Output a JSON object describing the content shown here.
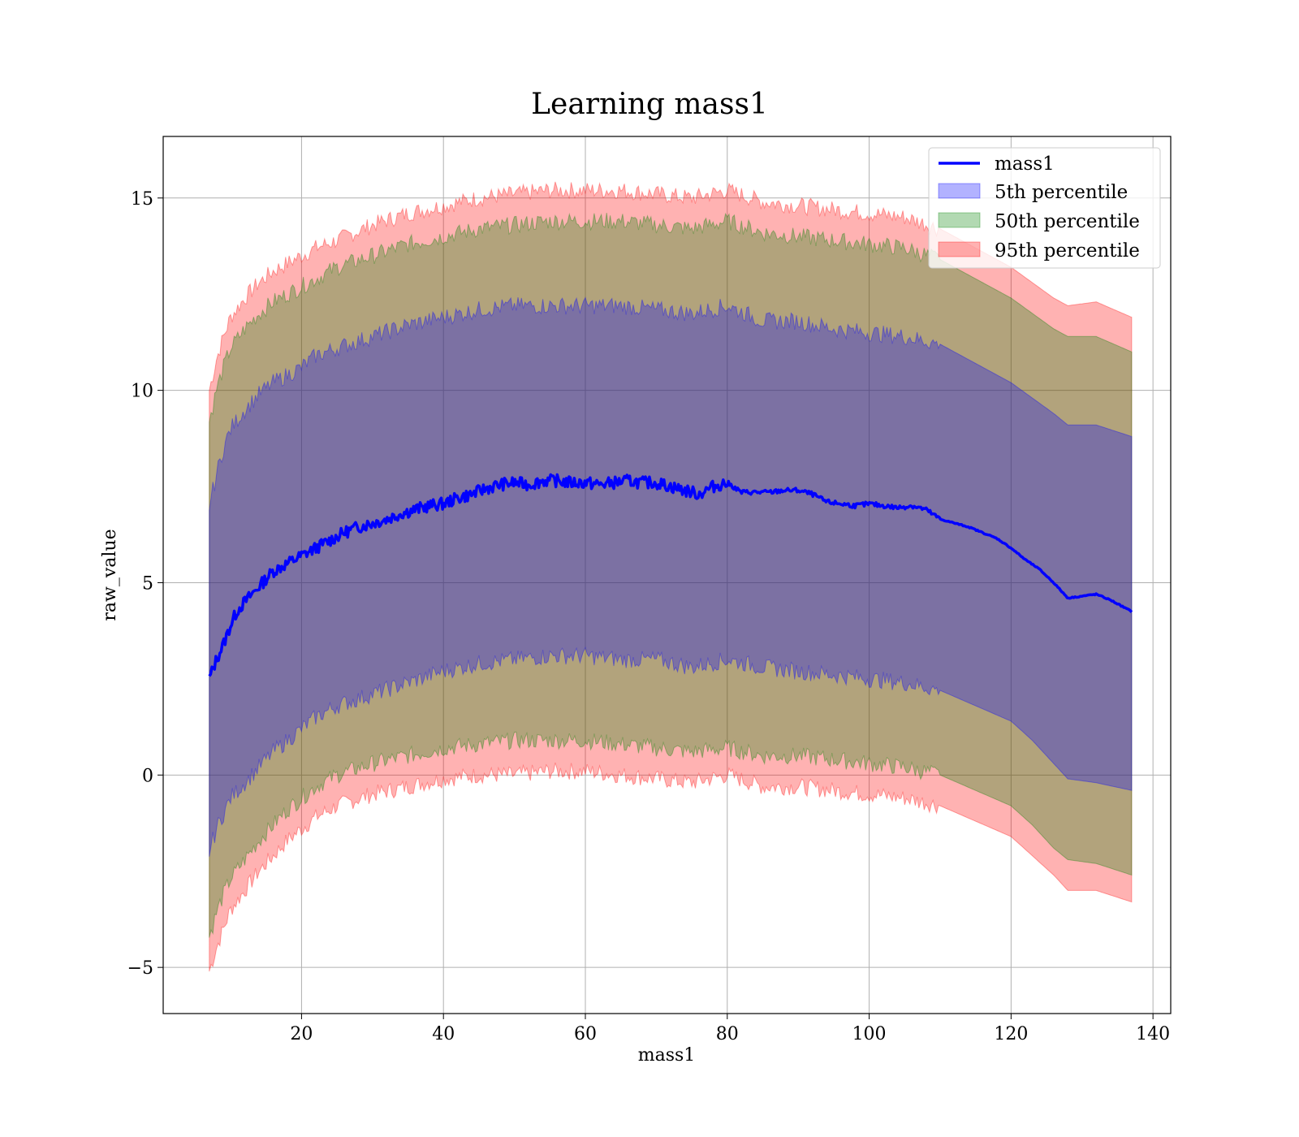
{
  "chart_data": {
    "type": "area",
    "title": "Learning mass1",
    "xlabel": "mass1",
    "ylabel": "raw_value",
    "xlim": [
      0.5,
      142.5
    ],
    "ylim": [
      -6.2,
      16.6
    ],
    "xticks": [
      20,
      40,
      60,
      80,
      100,
      120,
      140
    ],
    "xtick_labels": [
      "20",
      "40",
      "60",
      "80",
      "100",
      "120",
      "140"
    ],
    "yticks": [
      -5,
      0,
      5,
      10,
      15
    ],
    "ytick_labels": [
      "−5",
      "0",
      "5",
      "10",
      "15"
    ],
    "grid": true,
    "legend_position": "top-right",
    "line": {
      "name": "mass1",
      "color": "#0000ff",
      "x": [
        7,
        8,
        9,
        10,
        11,
        12,
        13,
        14,
        15,
        16,
        18,
        20,
        22,
        24,
        26,
        28,
        30,
        32,
        34,
        36,
        38,
        40,
        42,
        44,
        46,
        48,
        50,
        52,
        54,
        56,
        58,
        60,
        62,
        64,
        66,
        68,
        70,
        72,
        74,
        76,
        78,
        80,
        82,
        84,
        86,
        88,
        90,
        92,
        94,
        96,
        98,
        100,
        102,
        104,
        106,
        108,
        110,
        112,
        114,
        116,
        118,
        120,
        122,
        124,
        126,
        128,
        130,
        132,
        134,
        137
      ],
      "y": [
        2.5,
        3.0,
        3.4,
        3.9,
        4.3,
        4.5,
        4.7,
        4.9,
        5.1,
        5.3,
        5.5,
        5.7,
        5.9,
        6.1,
        6.3,
        6.45,
        6.55,
        6.65,
        6.8,
        6.9,
        7.0,
        7.05,
        7.2,
        7.3,
        7.45,
        7.55,
        7.6,
        7.55,
        7.65,
        7.65,
        7.6,
        7.6,
        7.55,
        7.6,
        7.65,
        7.6,
        7.6,
        7.5,
        7.4,
        7.3,
        7.5,
        7.6,
        7.35,
        7.35,
        7.35,
        7.4,
        7.4,
        7.3,
        7.1,
        7.05,
        7.0,
        7.05,
        7.0,
        6.95,
        7.0,
        6.9,
        6.65,
        6.55,
        6.45,
        6.3,
        6.15,
        5.9,
        5.6,
        5.35,
        5.0,
        4.6,
        4.65,
        4.7,
        4.55,
        4.25
      ]
    },
    "bands": [
      {
        "name": "5th percentile",
        "color": "#0000ff",
        "x": [
          7,
          8,
          9,
          10,
          12,
          14,
          16,
          18,
          20,
          22,
          25,
          30,
          35,
          40,
          45,
          50,
          55,
          60,
          65,
          70,
          75,
          80,
          85,
          90,
          95,
          100,
          105,
          110,
          115,
          120,
          123,
          126,
          128,
          132,
          137
        ],
        "upper": [
          7.0,
          7.8,
          8.5,
          9.0,
          9.5,
          9.9,
          10.2,
          10.4,
          10.6,
          10.9,
          11.1,
          11.4,
          11.7,
          11.9,
          12.1,
          12.2,
          12.2,
          12.2,
          12.2,
          12.1,
          12.0,
          12.2,
          11.8,
          11.8,
          11.6,
          11.5,
          11.4,
          11.2,
          10.7,
          10.2,
          9.8,
          9.4,
          9.1,
          9.1,
          8.8
        ],
        "lower": [
          -2.0,
          -1.4,
          -1.0,
          -0.6,
          -0.2,
          0.2,
          0.6,
          0.9,
          1.2,
          1.5,
          1.8,
          2.1,
          2.4,
          2.7,
          2.9,
          3.0,
          3.1,
          3.1,
          3.0,
          3.0,
          2.8,
          3.0,
          2.8,
          2.7,
          2.6,
          2.5,
          2.4,
          2.2,
          1.8,
          1.4,
          0.9,
          0.3,
          -0.1,
          -0.2,
          -0.4
        ]
      },
      {
        "name": "50th percentile",
        "color": "#008000",
        "x": [
          7,
          8,
          9,
          10,
          12,
          14,
          16,
          18,
          20,
          22,
          25,
          30,
          35,
          40,
          45,
          50,
          55,
          60,
          65,
          70,
          75,
          80,
          85,
          90,
          95,
          100,
          105,
          110,
          115,
          120,
          123,
          126,
          128,
          132,
          137
        ],
        "upper": [
          9.2,
          10.0,
          10.6,
          11.1,
          11.6,
          12.0,
          12.3,
          12.5,
          12.7,
          12.9,
          13.2,
          13.5,
          13.8,
          14.0,
          14.2,
          14.3,
          14.4,
          14.4,
          14.4,
          14.3,
          14.2,
          14.4,
          14.1,
          14.0,
          13.9,
          13.8,
          13.7,
          13.4,
          12.9,
          12.4,
          12.0,
          11.6,
          11.4,
          11.4,
          11.0
        ],
        "lower": [
          -4.2,
          -3.6,
          -3.1,
          -2.7,
          -2.2,
          -1.7,
          -1.3,
          -0.9,
          -0.6,
          -0.3,
          0.0,
          0.3,
          0.5,
          0.7,
          0.8,
          0.9,
          0.9,
          0.9,
          0.8,
          0.7,
          0.6,
          0.7,
          0.5,
          0.5,
          0.4,
          0.3,
          0.2,
          0.0,
          -0.4,
          -0.8,
          -1.3,
          -1.9,
          -2.2,
          -2.3,
          -2.6
        ]
      },
      {
        "name": "95th percentile",
        "color": "#ff0000",
        "x": [
          7,
          8,
          9,
          10,
          12,
          14,
          16,
          18,
          20,
          22,
          25,
          30,
          35,
          40,
          45,
          50,
          55,
          60,
          65,
          70,
          75,
          80,
          85,
          90,
          95,
          100,
          105,
          110,
          115,
          120,
          123,
          126,
          128,
          132,
          137
        ],
        "upper": [
          10.0,
          10.8,
          11.4,
          11.9,
          12.4,
          12.8,
          13.1,
          13.3,
          13.5,
          13.7,
          13.9,
          14.3,
          14.6,
          14.8,
          15.0,
          15.1,
          15.2,
          15.2,
          15.2,
          15.1,
          15.0,
          15.2,
          14.9,
          14.8,
          14.7,
          14.6,
          14.5,
          14.2,
          13.7,
          13.2,
          12.8,
          12.4,
          12.2,
          12.3,
          11.9
        ],
        "lower": [
          -5.1,
          -4.5,
          -4.0,
          -3.5,
          -3.0,
          -2.5,
          -2.1,
          -1.7,
          -1.4,
          -1.1,
          -0.8,
          -0.5,
          -0.3,
          -0.1,
          0.0,
          0.0,
          0.1,
          0.1,
          0.0,
          -0.1,
          -0.2,
          0.0,
          -0.3,
          -0.3,
          -0.4,
          -0.5,
          -0.6,
          -0.8,
          -1.2,
          -1.6,
          -2.1,
          -2.6,
          -3.0,
          -3.0,
          -3.3
        ]
      }
    ],
    "legend": [
      "mass1",
      "5th percentile",
      "50th percentile",
      "95th percentile"
    ]
  }
}
